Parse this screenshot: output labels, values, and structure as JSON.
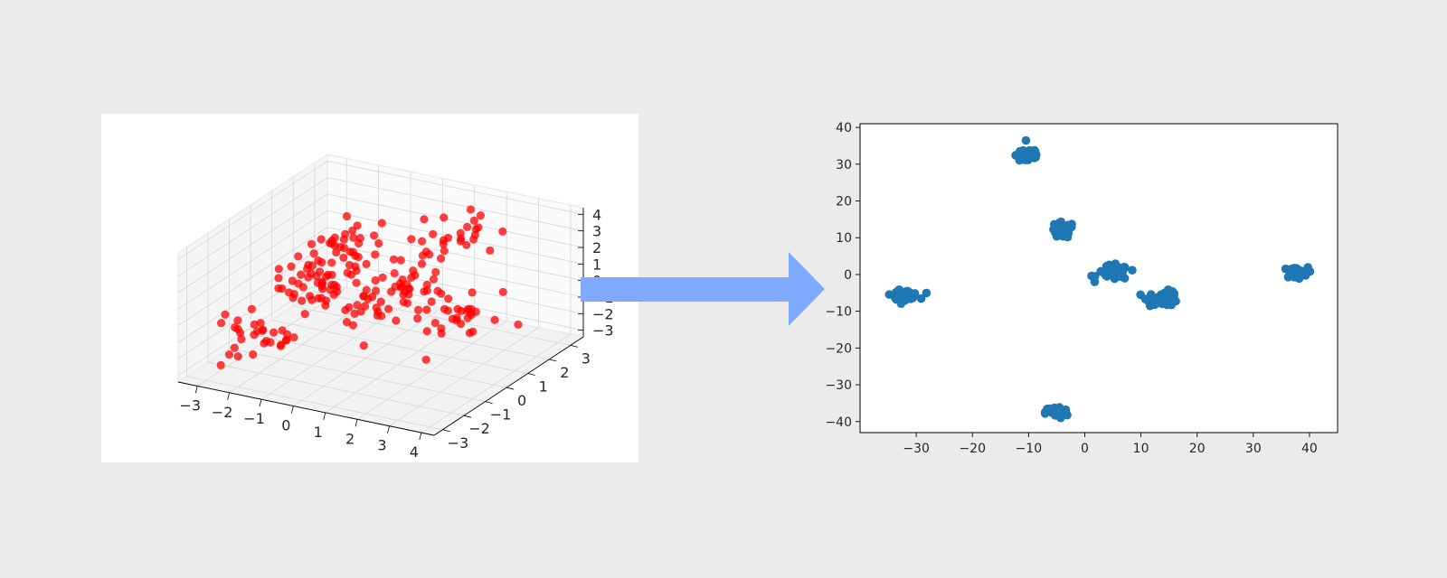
{
  "figure": {
    "arrow_color": "#80aaff",
    "background_color": "#ebebeb",
    "arrow_icon": "right-arrow-icon"
  },
  "chart_data": [
    {
      "type": "scatter",
      "projection": "3d",
      "marker_color": "#ff0000",
      "title": "",
      "xlabel": "",
      "ylabel": "",
      "zlabel": "",
      "xlim": [
        -3.6,
        4.4
      ],
      "ylim": [
        -3.4,
        3.6
      ],
      "zlim": [
        -3.4,
        4.4
      ],
      "xticks": [
        -3,
        -2,
        -1,
        0,
        1,
        2,
        3,
        4
      ],
      "yticks": [
        -3,
        -2,
        -1,
        0,
        1,
        2,
        3
      ],
      "zticks": [
        -3,
        -2,
        -1,
        0,
        1,
        2,
        3,
        4
      ],
      "grid": true,
      "clusters": [
        {
          "center": [
            -2.6,
            -1.2,
            -2.0
          ],
          "count": 30
        },
        {
          "center": [
            -1.1,
            0.4,
            2.4
          ],
          "count": 35
        },
        {
          "center": [
            -1.8,
            0.2,
            0.2
          ],
          "count": 40
        },
        {
          "center": [
            0.9,
            0.8,
            0.9
          ],
          "count": 35
        },
        {
          "center": [
            2.6,
            0.6,
            -0.5
          ],
          "count": 30
        },
        {
          "center": [
            1.2,
            2.6,
            2.2
          ],
          "count": 25
        },
        {
          "center": [
            0.0,
            -0.2,
            -0.2
          ],
          "count": 25
        }
      ]
    },
    {
      "type": "scatter",
      "marker_color": "#1f77b4",
      "title": "",
      "xlabel": "",
      "ylabel": "",
      "xlim": [
        -40,
        45
      ],
      "ylim": [
        -43,
        41
      ],
      "xticks": [
        -30,
        -20,
        -10,
        0,
        10,
        20,
        30,
        40
      ],
      "yticks": [
        40,
        30,
        20,
        10,
        0,
        -10,
        -20,
        -30,
        -40
      ],
      "grid": false,
      "clusters": [
        {
          "center": [
            -10,
            32.5
          ],
          "count": 40,
          "spread": [
            2.0,
            2.2
          ]
        },
        {
          "center": [
            -4,
            12
          ],
          "count": 40,
          "spread": [
            1.9,
            2.0
          ]
        },
        {
          "center": [
            5,
            0.5
          ],
          "count": 45,
          "spread": [
            2.6,
            1.8
          ]
        },
        {
          "center": [
            14,
            -6.5
          ],
          "count": 45,
          "spread": [
            2.6,
            1.8
          ]
        },
        {
          "center": [
            -32,
            -5.5
          ],
          "count": 40,
          "spread": [
            2.2,
            1.1
          ]
        },
        {
          "center": [
            37.5,
            0.5
          ],
          "count": 45,
          "spread": [
            2.0,
            1.3
          ]
        },
        {
          "center": [
            -5,
            -37.5
          ],
          "count": 35,
          "spread": [
            1.8,
            1.5
          ]
        }
      ]
    }
  ]
}
